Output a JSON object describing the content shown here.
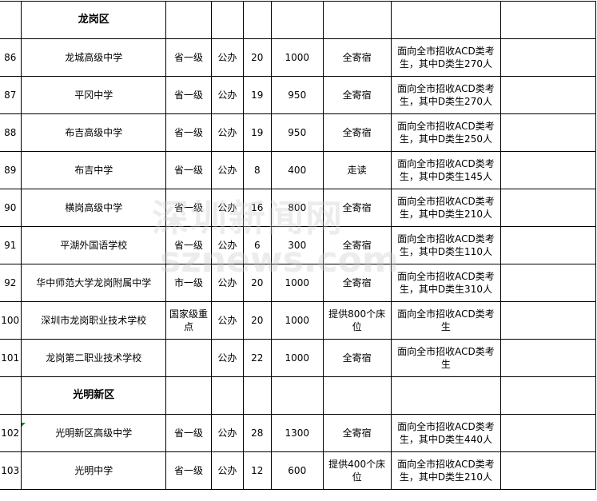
{
  "watermark": {
    "line1": "深圳新闻网",
    "line2": "sznews.com"
  },
  "rows": [
    {
      "type": "section",
      "name": "龙岗区"
    },
    {
      "no": "86",
      "name": "龙城高级中学",
      "level": "省一级",
      "nature": "公办",
      "classes": "20",
      "enroll": "1000",
      "board": "全寄宿",
      "note": "面向全市招收ACD类考生，其中D类生270人",
      "extra": ""
    },
    {
      "no": "87",
      "name": "平冈中学",
      "level": "省一级",
      "nature": "公办",
      "classes": "19",
      "enroll": "950",
      "board": "全寄宿",
      "note": "面向全市招收ACD类考生，其中D类生270人",
      "extra": ""
    },
    {
      "no": "88",
      "name": "布吉高级中学",
      "level": "省一级",
      "nature": "公办",
      "classes": "19",
      "enroll": "950",
      "board": "全寄宿",
      "note": "面向全市招收ACD类考生，其中D类生250人",
      "extra": ""
    },
    {
      "no": "89",
      "name": "布吉中学",
      "level": "省一级",
      "nature": "公办",
      "classes": "8",
      "enroll": "400",
      "board": "走读",
      "note": "面向全市招收ACD类考生，其中D类生145人",
      "extra": ""
    },
    {
      "no": "90",
      "name": "横岗高级中学",
      "level": "省一级",
      "nature": "公办",
      "classes": "16",
      "enroll": "800",
      "board": "全寄宿",
      "note": "面向全市招收ACD类考生，其中D类生210人",
      "extra": ""
    },
    {
      "no": "91",
      "name": "平湖外国语学校",
      "level": "省一级",
      "nature": "公办",
      "classes": "6",
      "enroll": "300",
      "board": "全寄宿",
      "note": "面向全市招收ACD类考生，其中D类生110人",
      "extra": ""
    },
    {
      "no": "92",
      "name": "华中师范大学龙岗附属中学",
      "level": "市一级",
      "nature": "公办",
      "classes": "20",
      "enroll": "1000",
      "board": "全寄宿",
      "note": "面向全市招收ACD类考生，其中D类生310人",
      "extra": ""
    },
    {
      "no": "100",
      "name": "深圳市龙岗职业技术学校",
      "level": "国家级重点",
      "nature": "公办",
      "classes": "20",
      "enroll": "1000",
      "board": "提供800个床位",
      "note": "面向全市招收ACD类考生",
      "extra": ""
    },
    {
      "no": "101",
      "name": "龙岗第二职业技术学校",
      "level": "",
      "nature": "公办",
      "classes": "22",
      "enroll": "1000",
      "board": "全寄宿",
      "note": "面向全市招收ACD类考生",
      "extra": ""
    },
    {
      "type": "section",
      "name": "光明新区"
    },
    {
      "no": "102",
      "name": "光明新区高级中学",
      "level": "省一级",
      "nature": "公办",
      "classes": "28",
      "enroll": "1300",
      "board": "全寄宿",
      "note": "面向全市招收ACD类考生，其中D类生440人",
      "extra": ""
    },
    {
      "no": "103",
      "name": "光明中学",
      "level": "省一级",
      "nature": "公办",
      "classes": "12",
      "enroll": "600",
      "board": "提供400个床位",
      "note": "面向全市招收ACD类考生，其中D类生210人",
      "extra": ""
    }
  ]
}
